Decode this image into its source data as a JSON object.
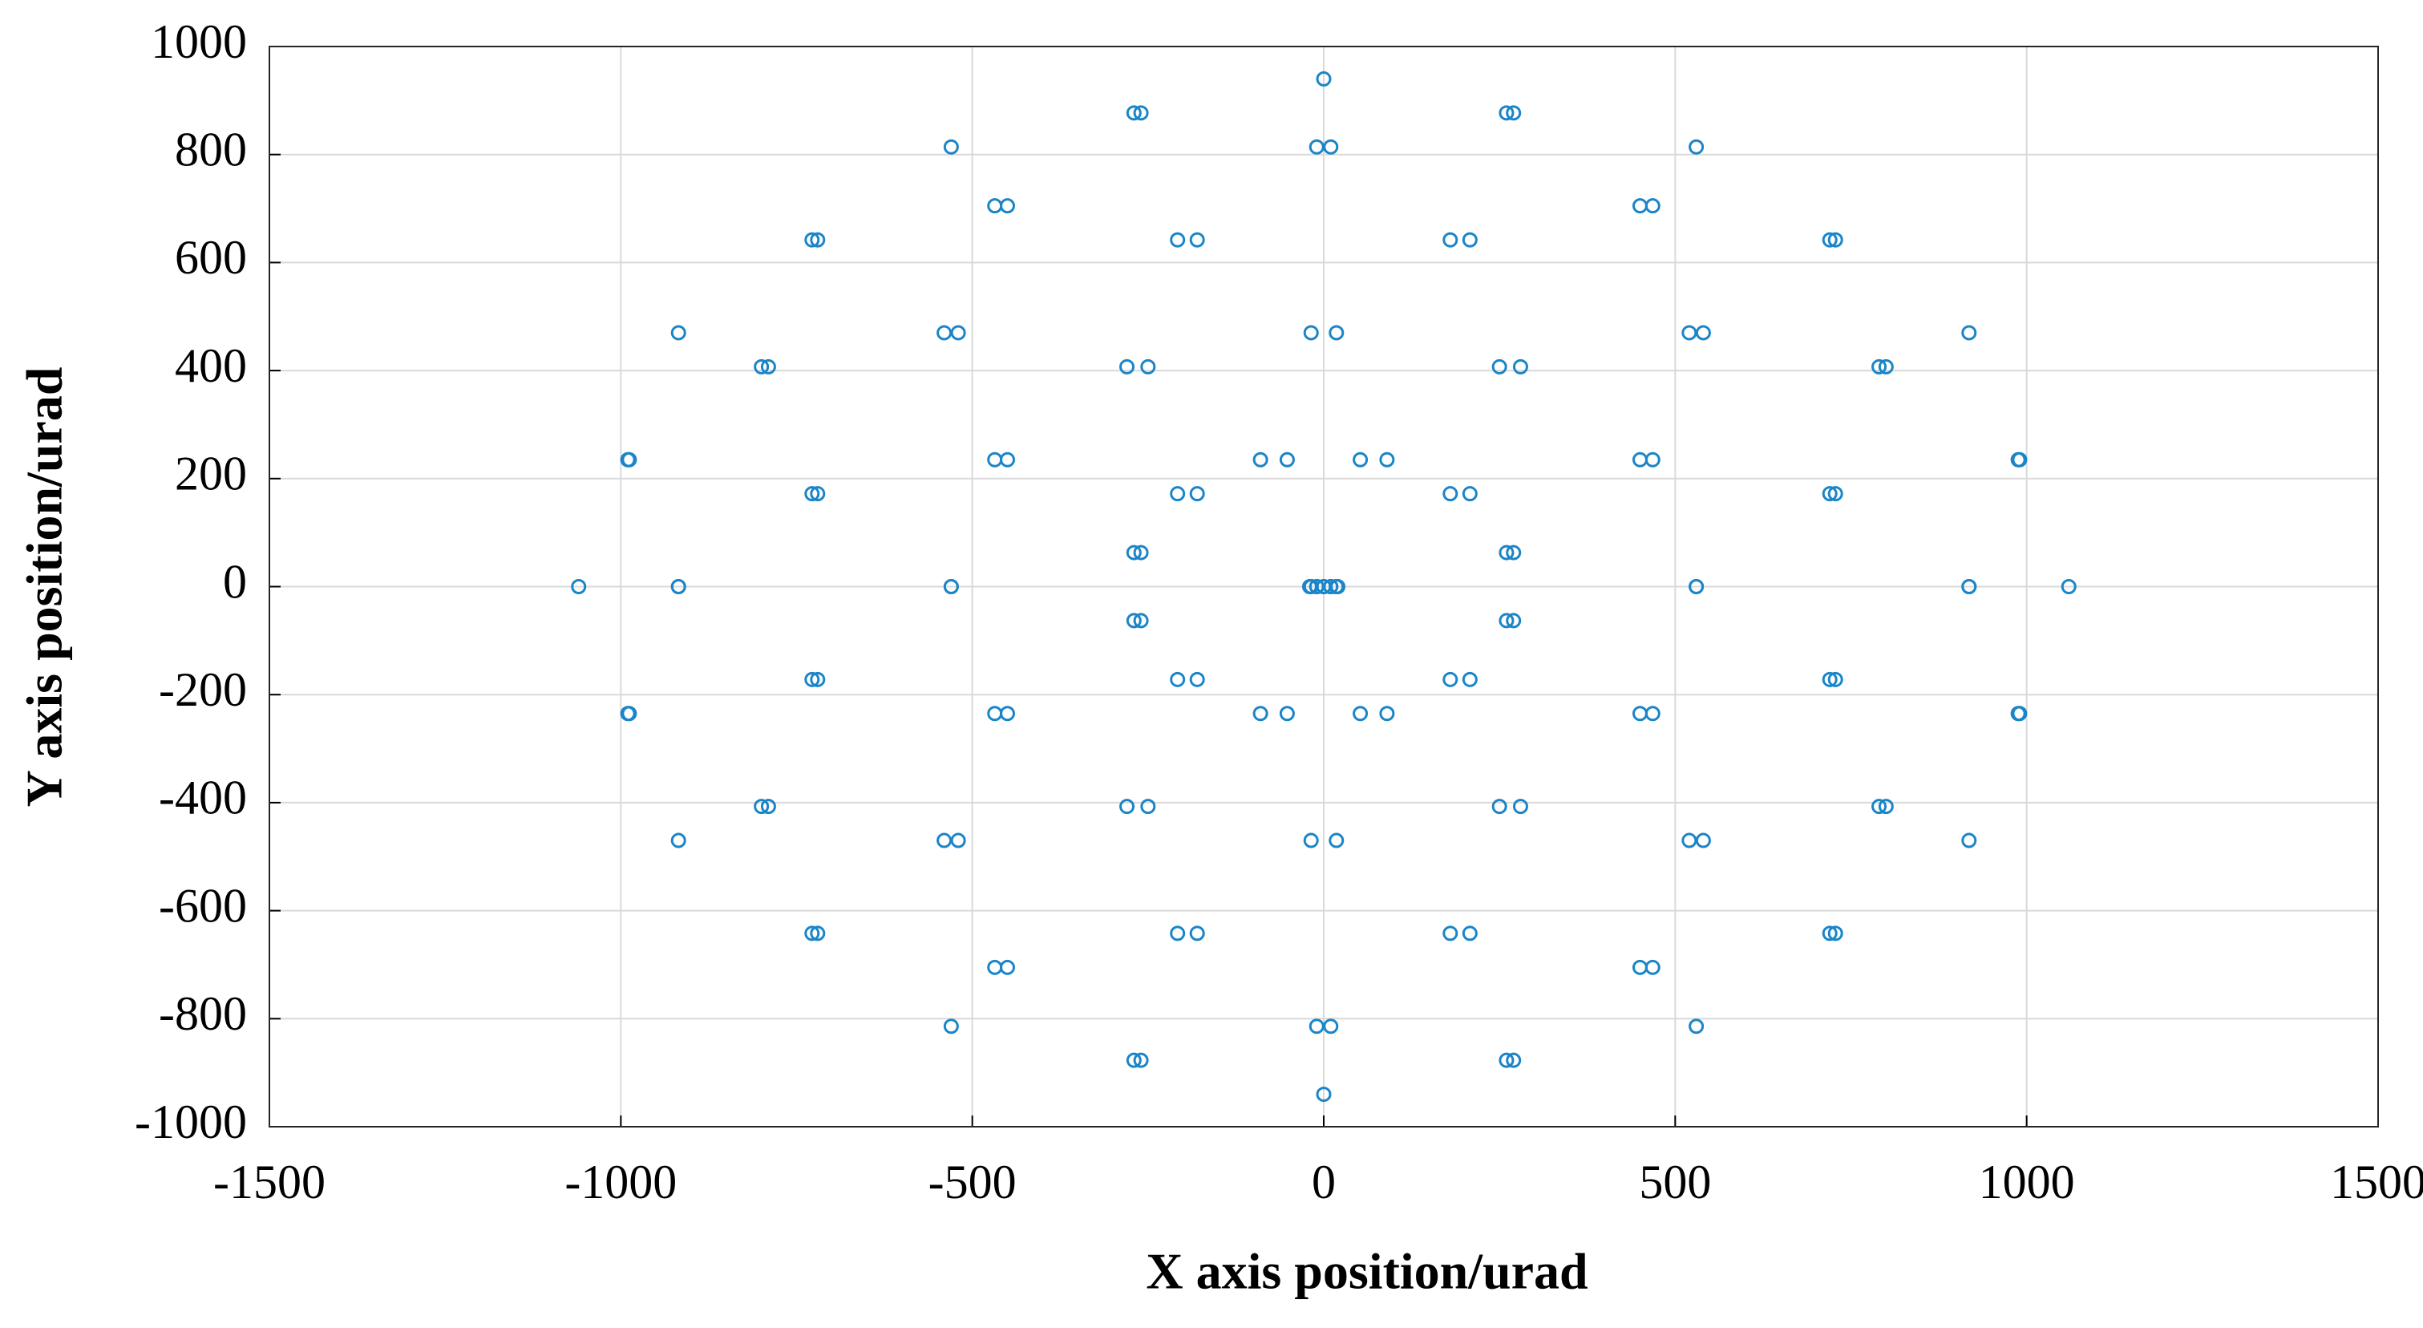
{
  "chart_data": {
    "type": "scatter",
    "x_label": "X axis position/urad",
    "y_label": "Y axis position/urad",
    "color": "#1a85c8",
    "grid": true,
    "xlim": [
      -1500,
      1500
    ],
    "xticks": [
      -1500,
      -1000,
      -500,
      0,
      500,
      1000,
      1500
    ],
    "ylim": [
      -1000,
      1000
    ],
    "yticks": [
      -1000,
      -800,
      -600,
      -400,
      -200,
      0,
      200,
      400,
      600,
      800,
      1000
    ],
    "x": [
      1060,
      990,
      800,
      540,
      280,
      90,
      20,
      90,
      280,
      540,
      800,
      990,
      988,
      918,
      728,
      468,
      208,
      18,
      -52,
      18,
      208,
      468,
      728,
      918,
      790,
      720,
      530,
      270,
      10,
      -180,
      -250,
      -180,
      10,
      270,
      530,
      720,
      520,
      450,
      260,
      0,
      -260,
      -450,
      -520,
      -450,
      -260,
      0,
      260,
      450,
      250,
      180,
      -10,
      -270,
      -530,
      -720,
      -790,
      -720,
      -530,
      -270,
      -10,
      180,
      52,
      -18,
      -208,
      -468,
      -728,
      -918,
      -988,
      -918,
      -728,
      -468,
      -208,
      -18,
      -20,
      -90,
      -280,
      -540,
      -800,
      -990,
      -1060,
      -990,
      -800,
      -540,
      -280,
      -90,
      52,
      -18,
      -208,
      -468,
      -728,
      -918,
      -988,
      -918,
      -728,
      -468,
      -208,
      -18,
      250,
      180,
      -10,
      -270,
      -530,
      -720,
      -790,
      -720,
      -530,
      -270,
      -10,
      180,
      520,
      450,
      260,
      0,
      -260,
      -450,
      -520,
      -450,
      -260,
      0,
      260,
      450,
      790,
      720,
      530,
      270,
      10,
      -180,
      -250,
      -180,
      10,
      270,
      530,
      720,
      988,
      918,
      728,
      468,
      208,
      18,
      -52,
      18,
      208,
      468,
      728,
      918
    ],
    "values": [
      0,
      235,
      407,
      470,
      407,
      235,
      0,
      -235,
      -407,
      -470,
      -407,
      -235,
      235,
      470,
      642,
      705,
      642,
      470,
      235,
      0,
      -172,
      -235,
      -172,
      0,
      407,
      642,
      814,
      877,
      814,
      642,
      407,
      172,
      0,
      -63,
      0,
      172,
      470,
      705,
      877,
      940,
      877,
      705,
      470,
      235,
      63,
      0,
      63,
      235,
      407,
      642,
      814,
      877,
      814,
      642,
      407,
      172,
      0,
      -63,
      0,
      172,
      235,
      470,
      642,
      705,
      642,
      470,
      235,
      0,
      -172,
      -235,
      -172,
      0,
      0,
      235,
      407,
      470,
      407,
      235,
      0,
      -235,
      -407,
      -470,
      -407,
      -235,
      -235,
      0,
      172,
      235,
      172,
      0,
      -235,
      -470,
      -642,
      -705,
      -642,
      -470,
      -407,
      -172,
      0,
      63,
      0,
      -172,
      -407,
      -642,
      -814,
      -877,
      -814,
      -642,
      -470,
      -235,
      -63,
      0,
      -63,
      -235,
      -470,
      -705,
      -877,
      -940,
      -877,
      -705,
      -407,
      -172,
      0,
      63,
      0,
      -172,
      -407,
      -642,
      -814,
      -877,
      -814,
      -642,
      -235,
      0,
      172,
      235,
      172,
      0,
      -235,
      -470,
      -642,
      -705,
      -642,
      -470
    ]
  }
}
